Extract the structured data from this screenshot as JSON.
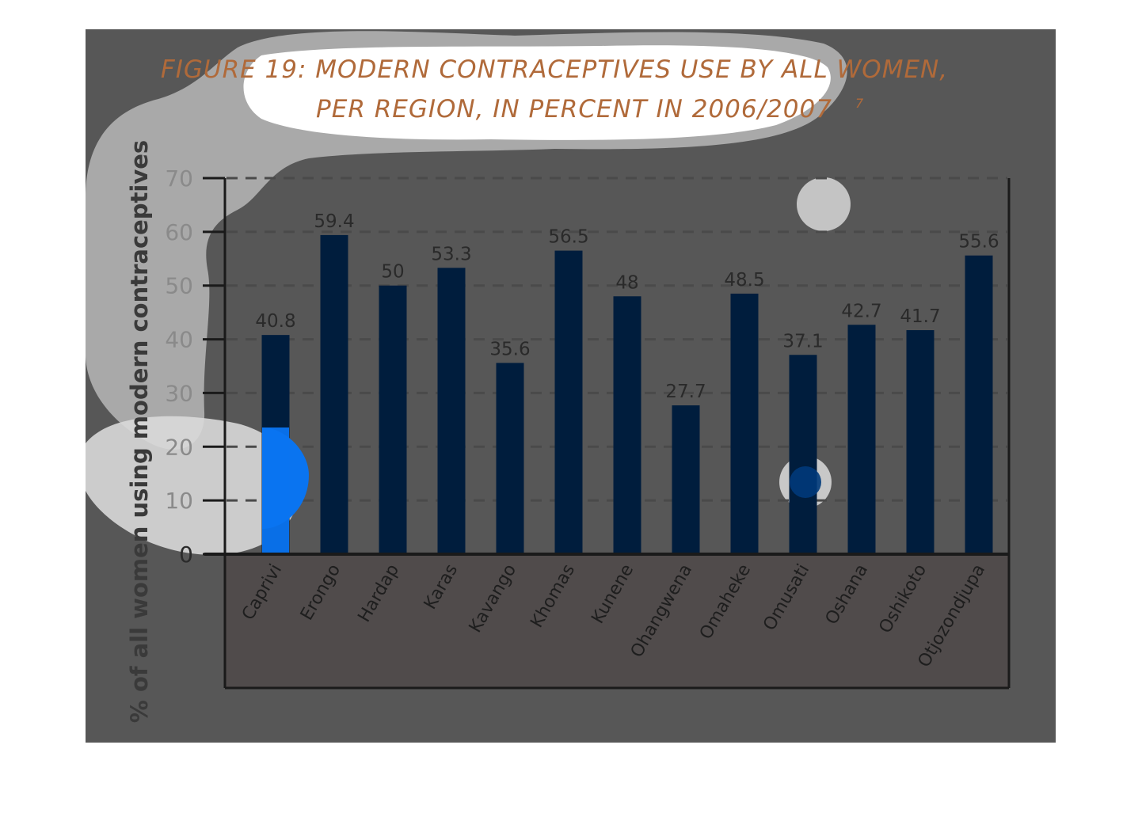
{
  "chart_data": {
    "type": "bar",
    "title_line1": "FIGURE 19: MODERN CONTRACEPTIVES USE BY ALL WOMEN,",
    "title_line2": "PER REGION, IN PERCENT IN 2006/2007",
    "title_footnote": "7",
    "ylabel": "% of all women using modern contraceptives",
    "xlabel": "",
    "ylim": [
      0,
      70
    ],
    "yticks": [
      "0",
      "10",
      "20",
      "30",
      "40",
      "50",
      "60",
      "70"
    ],
    "grid": true,
    "categories": [
      "Caprivi",
      "Erongo",
      "Hardap",
      "Karas",
      "Kavango",
      "Khomas",
      "Kunene",
      "Ohangwena",
      "Omaheke",
      "Omusati",
      "Oshana",
      "Oshikoto",
      "Otjozondjupa"
    ],
    "values": [
      40.8,
      59.4,
      50,
      53.3,
      35.6,
      56.5,
      48,
      27.7,
      48.5,
      37.1,
      42.7,
      41.7,
      55.6
    ],
    "data_labels": [
      "40.8",
      "59.4",
      "50",
      "53.3",
      "35.6",
      "56.5",
      "48",
      "27.7",
      "48.5",
      "37.1",
      "42.7",
      "41.7",
      "55.6"
    ],
    "colors": {
      "background": "#575757",
      "bar": "#001d3d",
      "title": "#b06a3a",
      "title_shadow": "#7a4a2a",
      "axis": "#1a1a1a",
      "grid": "#4a4a4a",
      "tick_label": "#8a8a8a",
      "data_label": "#2a2a2a",
      "category_panel": "#504b4b",
      "overlay_light": "#c9c9c9",
      "highlight_blue": "#0a74f0"
    }
  }
}
